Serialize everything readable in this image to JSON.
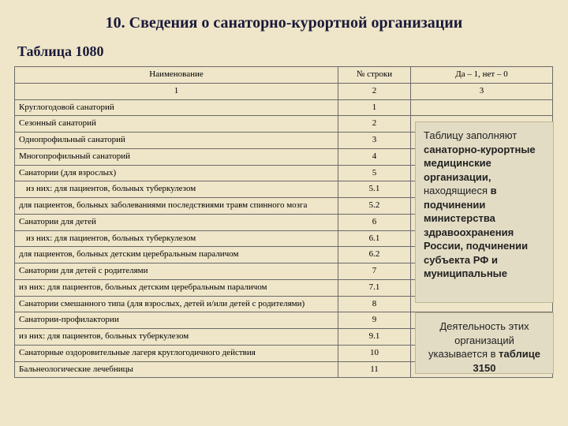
{
  "title": "10. Сведения о санаторно-курортной организации",
  "subtitle": "Таблица 1080",
  "table": {
    "headers": {
      "name": "Наименование",
      "line": "№ строки",
      "val": "Да – 1, нет – 0"
    },
    "subheaders": {
      "name": "1",
      "line": "2",
      "val": "3"
    },
    "rows": [
      {
        "name": "Круглогодовой санаторий",
        "line": "1",
        "indent": false
      },
      {
        "name": "Сезонный санаторий",
        "line": "2",
        "indent": false
      },
      {
        "name": "Однопрофильный санаторий",
        "line": "3",
        "indent": false
      },
      {
        "name": "Многопрофильный санаторий",
        "line": "4",
        "indent": false
      },
      {
        "name": "Санатории (для взрослых)",
        "line": "5",
        "indent": false
      },
      {
        "name": "из них: для пациентов, больных туберкулезом",
        "line": "5.1",
        "indent": true
      },
      {
        "name": "для пациентов, больных заболеваниями последствиями травм спинного мозга",
        "line": "5.2",
        "indent": false
      },
      {
        "name": "Санатории для детей",
        "line": "6",
        "indent": false
      },
      {
        "name": "из них: для пациентов, больных туберкулезом",
        "line": "6.1",
        "indent": true
      },
      {
        "name": "для пациентов, больных детским  церебральным параличом",
        "line": "6.2",
        "indent": false
      },
      {
        "name": "Санатории для детей с родителями",
        "line": "7",
        "indent": false
      },
      {
        "name": "из них: для пациентов, больных детским церебральным параличом",
        "line": "7.1",
        "indent": false
      },
      {
        "name": "Санатории смешанного типа (для взрослых,  детей и/или детей с родителями)",
        "line": "8",
        "indent": false
      },
      {
        "name": "Санатории-профилактории",
        "line": "9",
        "indent": false
      },
      {
        "name": "из них: для пациентов, больных туберкулезом",
        "line": "9.1",
        "indent": false
      },
      {
        "name": "Санаторные оздоровительные лагеря круглогодичного действия",
        "line": "10",
        "indent": false
      },
      {
        "name": "Бальнеологические лечебницы",
        "line": "11",
        "indent": false
      }
    ]
  },
  "callout1_html": "Таблицу заполняют <b>санаторно-курортные медицинские организации,</b> находящиеся <b>в подчинении министерства здравоохранения России, подчинении субъекта РФ и муниципальные</b>",
  "callout2_html": "Деятельность этих организаций указывается в <b>таблице 3150</b>",
  "colors": {
    "page_bg": "#efe5c8",
    "callout_bg": "#e3dcc4",
    "callout_border": "#bfb895",
    "table_border": "#6a6a6a",
    "heading_text": "#1a1a3a"
  },
  "fonts": {
    "body_family": "Times New Roman",
    "callout_family": "Arial",
    "title_size_pt": 15,
    "subtitle_size_pt": 13,
    "table_size_pt": 8,
    "callout_size_pt": 10
  }
}
